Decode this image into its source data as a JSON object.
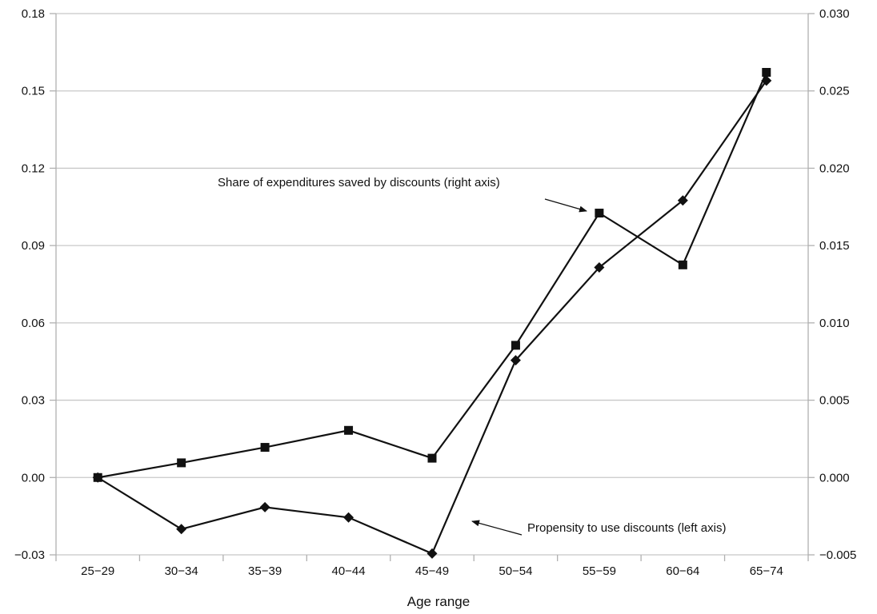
{
  "chart_data": {
    "type": "line",
    "xlabel": "Age range",
    "categories": [
      "25−29",
      "30−34",
      "35−39",
      "40−44",
      "45−49",
      "50−54",
      "55−59",
      "60−64",
      "65−74"
    ],
    "y_left": {
      "lim": [
        -0.03,
        0.18
      ],
      "ticks": [
        "−0.03",
        "0.00",
        "0.03",
        "0.06",
        "0.09",
        "0.12",
        "0.15",
        "0.18"
      ]
    },
    "y_right": {
      "lim": [
        -0.005,
        0.03
      ],
      "ticks": [
        "−0.005",
        "0.000",
        "0.005",
        "0.010",
        "0.015",
        "0.020",
        "0.025",
        "0.030"
      ]
    },
    "grid": true,
    "series": [
      {
        "axis": "left",
        "marker": "diamond",
        "values": [
          0.0,
          -0.02,
          -0.0115,
          -0.0155,
          -0.0295,
          0.0455,
          0.0815,
          0.1075,
          0.154
        ]
      },
      {
        "axis": "right",
        "marker": "square",
        "values": [
          0.0,
          0.00095,
          0.00195,
          0.00305,
          0.00125,
          0.00855,
          0.0171,
          0.01375,
          0.0262
        ]
      }
    ],
    "annotations": [
      {
        "text": "Share of expenditures saved by discounts (right axis)",
        "points_to": "square series at 55−59"
      },
      {
        "text": "Propensity to use discounts (left axis)",
        "points_to": "diamond series between 45−49 and 50−54"
      }
    ]
  }
}
